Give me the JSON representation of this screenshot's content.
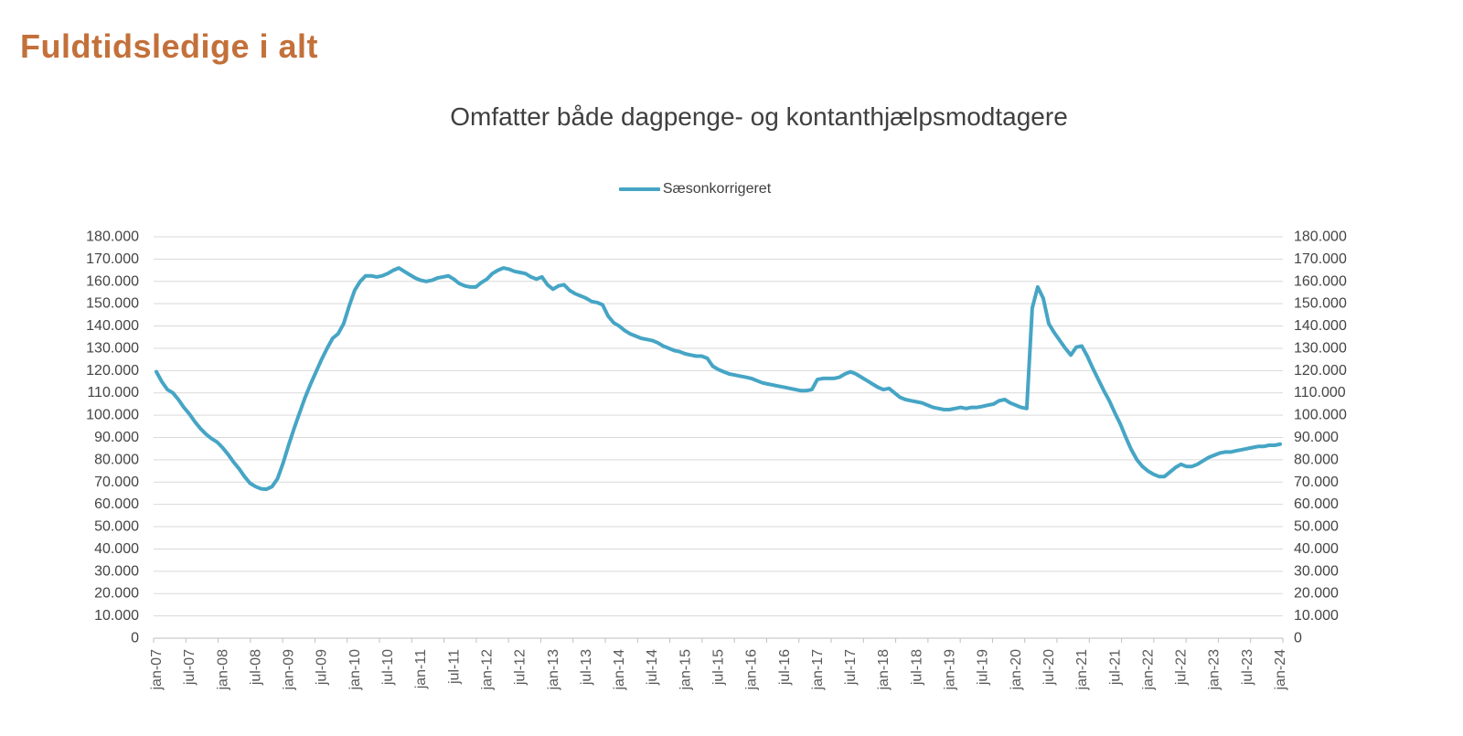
{
  "page": {
    "title": "Fuldtidsledige i alt",
    "title_color": "#c3703a"
  },
  "legend": {
    "items": [
      {
        "label": "Sæsonkorrigeret",
        "color": "#46a5c5"
      }
    ]
  },
  "chart_data": {
    "type": "line",
    "title": "Omfatter både dagpenge- og kontanthjælpsmodtagere",
    "xlabel": "",
    "ylabel": "",
    "x_frequency": "monthly",
    "x_start": "jan-07",
    "x_end": "jan-24",
    "x_tick_labels": [
      "jan-07",
      "jul-07",
      "jan-08",
      "jul-08",
      "jan-09",
      "jul-09",
      "jan-10",
      "jul-10",
      "jan-11",
      "jul-11",
      "jan-12",
      "jul-12",
      "jan-13",
      "jul-13",
      "jan-14",
      "jul-14",
      "jan-15",
      "jul-15",
      "jan-16",
      "jul-16",
      "jan-17",
      "jul-17",
      "jan-18",
      "jul-18",
      "jan-19",
      "jul-19",
      "jan-20",
      "jul-20",
      "jan-21",
      "jul-21",
      "jan-22",
      "jul-22",
      "jan-23",
      "jul-23",
      "jan-24"
    ],
    "y_tick_labels": [
      "180.000",
      "170.000",
      "160.000",
      "150.000",
      "140.000",
      "130.000",
      "120.000",
      "110.000",
      "100.000",
      "90.000",
      "80.000",
      "70.000",
      "60.000",
      "50.000",
      "40.000",
      "30.000",
      "20.000",
      "10.000",
      "0"
    ],
    "ylim": [
      0,
      180000
    ],
    "y_tick_step": 10000,
    "dual_y_axis": true,
    "grid": "horizontal",
    "grid_color": "#d9d9d9",
    "axis_line_color": "#bfbfbf",
    "tick_label_color": "#595959",
    "legend_position": "top-center",
    "series": [
      {
        "name": "Sæsonkorrigeret",
        "color": "#46a5c5",
        "line_width": 4,
        "values": [
          119500,
          115000,
          111500,
          110000,
          107000,
          103500,
          100500,
          97000,
          94000,
          91500,
          89500,
          88000,
          85500,
          82500,
          79000,
          76000,
          72500,
          69500,
          68000,
          67000,
          66800,
          68000,
          71500,
          78500,
          86500,
          94000,
          101000,
          108000,
          114000,
          119500,
          125000,
          130000,
          134500,
          136500,
          141000,
          149000,
          156000,
          160000,
          162500,
          162500,
          162000,
          162500,
          163500,
          165000,
          166000,
          164500,
          163000,
          161500,
          160500,
          160000,
          160500,
          161500,
          162000,
          162500,
          161000,
          159000,
          158000,
          157500,
          157500,
          159500,
          161000,
          163500,
          165000,
          166000,
          165500,
          164500,
          164000,
          163500,
          162000,
          161000,
          162000,
          158500,
          156500,
          158000,
          158500,
          156000,
          154500,
          153500,
          152500,
          151000,
          150500,
          149500,
          144500,
          141500,
          140000,
          138000,
          136500,
          135500,
          134500,
          134000,
          133500,
          132500,
          131000,
          130000,
          129000,
          128500,
          127500,
          127000,
          126500,
          126500,
          125500,
          122000,
          120500,
          119500,
          118500,
          118000,
          117500,
          117000,
          116500,
          115500,
          114500,
          114000,
          113500,
          113000,
          112500,
          112000,
          111500,
          111000,
          111000,
          111500,
          116000,
          116500,
          116500,
          116500,
          117000,
          118500,
          119500,
          118500,
          117000,
          115500,
          114000,
          112500,
          111500,
          112000,
          110000,
          108000,
          107000,
          106500,
          106000,
          105500,
          104500,
          103500,
          103000,
          102500,
          102500,
          103000,
          103500,
          103000,
          103500,
          103500,
          104000,
          104500,
          105000,
          106500,
          107000,
          105500,
          104500,
          103500,
          103000,
          148000,
          157500,
          152500,
          141000,
          137000,
          133500,
          130000,
          127000,
          130500,
          131000,
          126500,
          121000,
          116000,
          111000,
          106500,
          101000,
          96000,
          90000,
          84500,
          80000,
          77000,
          75000,
          73500,
          72500,
          72500,
          74500,
          76500,
          78000,
          77000,
          77000,
          78000,
          79500,
          81000,
          82000,
          83000,
          83500,
          83500,
          84000,
          84500,
          85000,
          85500,
          86000,
          86000,
          86500,
          86500,
          87000
        ]
      }
    ]
  }
}
